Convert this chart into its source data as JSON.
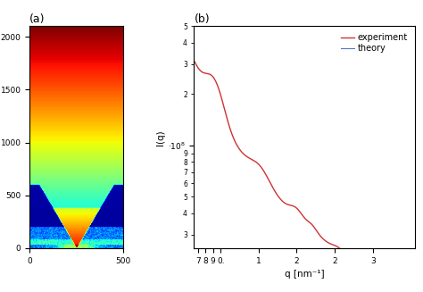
{
  "panel_a": {
    "label": "(a)",
    "xlim": [
      0,
      500
    ],
    "ylim": [
      0,
      2100
    ],
    "xticks": [
      0,
      500
    ],
    "yticks": [
      0,
      500,
      1000,
      1500,
      2000
    ]
  },
  "panel_b": {
    "label": "(b)",
    "xlabel": "q [nm⁻¹]",
    "ylabel": "I(q)",
    "xlim": [
      0.65,
      3.55
    ],
    "ylim_log": [
      25000000.0,
      500000000.0
    ],
    "xticks": [
      0.7,
      0.8,
      0.9,
      1.0,
      1.5,
      2.0,
      2.5,
      3.0,
      3.5
    ],
    "xtick_labels": [
      "7",
      "8",
      "9",
      "0.·",
      "1",
      "2",
      "2",
      "3",
      ""
    ],
    "legend_experiment": "experiment",
    "legend_theory": "theory",
    "exp_color": "#cc3333",
    "theory_color": "#5577cc"
  }
}
